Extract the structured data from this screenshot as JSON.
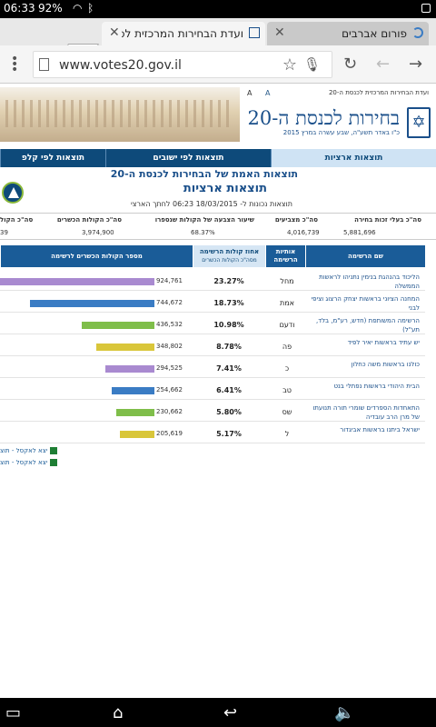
{
  "status": {
    "time": "06:33",
    "battery": "92%"
  },
  "tabs": [
    {
      "title": "פורום אברבים",
      "active": false
    },
    {
      "title": "ועדת הבחירות המרכזית לכ",
      "active": true
    }
  ],
  "toolbar": {
    "url": "www.votes20.gov.il"
  },
  "site": {
    "top_links": "ועדת הבחירות המרכזית לכנסת ה-20",
    "font_label": "A",
    "font_label2": "A",
    "title": "בחירות לכנסת ה-20",
    "subtitle": "כ\"ו באדר תשע\"ה, שבע עשרה במרץ 2015"
  },
  "nav": {
    "tabs": [
      "תוצאות ארציות",
      "תוצאות לפי ישובים",
      "תוצאות לפי קלפ"
    ]
  },
  "results": {
    "heading": "תוצאות האמת של הבחירות לכנסת ה-20",
    "subheading": "תוצאות ארציות",
    "updated": "תוצאות נכונות ל- 18/03/2015 06:23 לחתך הארצי"
  },
  "summary": {
    "headers": [
      "סה\"כ בעלי זכות בחירה",
      "סה\"כ מצביעים",
      "שיעור הצבעה של הקולות שנספרו",
      "סה\"כ הקולות הכשרים",
      "סה\"כ הקול"
    ],
    "values": [
      "5,881,696",
      "4,016,739",
      "68.37%",
      "3,974,900",
      "39"
    ]
  },
  "table": {
    "headers": {
      "name": "שם הרשימה",
      "letters": "אותיות הרשימה",
      "pct": "אחוז קולות הרשימה",
      "pct_sub": "מסה\"כ הקולות הכשרים",
      "votes": "מספר הקולות הכשרים לרשימה"
    },
    "rows": [
      {
        "name": "הליכוד בהנהגת בנימין נתניהו לראשות הממשלה",
        "letters": "מחל",
        "pct": "23.27%",
        "votes": "924,761",
        "color": "#a98ad0"
      },
      {
        "name": "המחנה הציוני בראשות יצחק הרצוג וציפי לבני",
        "letters": "אמת",
        "pct": "18.73%",
        "votes": "744,672",
        "color": "#3a7cc4"
      },
      {
        "name": "הרשימה המשותפת (חדש, רע\"מ, בלד, תע\"ל)",
        "letters": "ודעם",
        "pct": "10.98%",
        "votes": "436,532",
        "color": "#7fbe4a"
      },
      {
        "name": "יש עתיד בראשות יאיר לפיד",
        "letters": "פה",
        "pct": "8.78%",
        "votes": "348,802",
        "color": "#d9c63a"
      },
      {
        "name": "כולנו בראשות משה כחלון",
        "letters": "כ",
        "pct": "7.41%",
        "votes": "294,525",
        "color": "#a98ad0"
      },
      {
        "name": "הבית היהודי בראשות נפתלי בנט",
        "letters": "טב",
        "pct": "6.41%",
        "votes": "254,662",
        "color": "#3a7cc4"
      },
      {
        "name": "התאחדות הספרדים שומרי תורה תנועתו של מרן הרב עובדיה",
        "letters": "שס",
        "pct": "5.80%",
        "votes": "230,662",
        "color": "#7fbe4a"
      },
      {
        "name": "ישראל ביתנו בראשות אביגדור",
        "letters": "ל",
        "pct": "5.17%",
        "votes": "205,619",
        "color": "#d9c63a"
      }
    ]
  },
  "export": {
    "label1": "יצא לאקסל - תוצ",
    "label2": "יצא לאקסל - תוצ"
  },
  "colors": {
    "nav": "#0e4a7a",
    "header": "#1a5c98",
    "accent": "#1a4f8a"
  }
}
